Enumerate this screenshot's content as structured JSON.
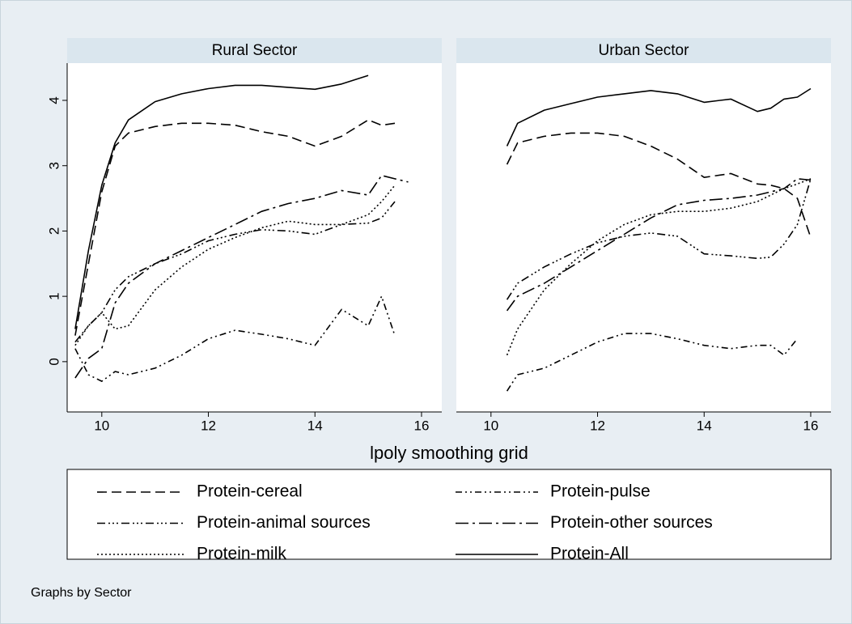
{
  "chart_data": {
    "type": "line",
    "xlabel": "lpoly smoothing grid",
    "note": "Graphs by Sector",
    "xlim": [
      9.35,
      16.38
    ],
    "xticks": [
      10,
      12,
      14,
      16
    ],
    "ylim": [
      -0.77,
      4.57
    ],
    "yticks": [
      0,
      1,
      2,
      3,
      4
    ],
    "series": [
      {
        "name": "Protein-cereal",
        "color": "#000000",
        "dash": "12,6"
      },
      {
        "name": "Protein-pulse",
        "color": "#000000",
        "dash": "8,4,2,4,2,4"
      },
      {
        "name": "Protein-animal sources",
        "color": "#000000",
        "dash": "10,4,2,3,2,3,2,4"
      },
      {
        "name": "Protein-other sources",
        "color": "#000000",
        "dash": "16,5,3,5"
      },
      {
        "name": "Protein-milk",
        "color": "#000000",
        "dash": "2,3"
      },
      {
        "name": "Protein-All",
        "color": "#000000",
        "dash": "none"
      }
    ],
    "panels": [
      {
        "title": "Rural Sector",
        "x": [
          9.5,
          9.75,
          10,
          10.25,
          10.5,
          11,
          11.5,
          12,
          12.5,
          13,
          13.5,
          14,
          14.5,
          15,
          15.25,
          15.5,
          15.75,
          16
        ],
        "values": [
          [
            0.4,
            1.5,
            2.6,
            3.3,
            3.5,
            3.6,
            3.65,
            3.65,
            3.62,
            3.52,
            3.45,
            3.3,
            3.45,
            3.7,
            3.62,
            3.65,
            null,
            null
          ],
          [
            0.2,
            -0.2,
            -0.3,
            -0.15,
            -0.2,
            -0.1,
            0.1,
            0.35,
            0.48,
            0.42,
            0.35,
            0.25,
            0.8,
            0.55,
            1.0,
            0.4,
            null,
            null
          ],
          [
            0.3,
            0.55,
            0.75,
            1.1,
            1.3,
            1.5,
            1.65,
            1.85,
            1.95,
            2.02,
            2.0,
            1.95,
            2.1,
            2.12,
            2.2,
            2.45,
            null,
            null
          ],
          [
            -0.25,
            0.05,
            0.2,
            0.9,
            1.2,
            1.5,
            1.7,
            1.9,
            2.1,
            2.3,
            2.42,
            2.5,
            2.62,
            2.55,
            2.85,
            2.8,
            2.75,
            null
          ],
          [
            0.25,
            0.55,
            0.75,
            0.5,
            0.55,
            1.1,
            1.45,
            1.72,
            1.9,
            2.05,
            2.15,
            2.1,
            2.1,
            2.25,
            2.45,
            2.7,
            null,
            null
          ],
          [
            0.5,
            1.7,
            2.7,
            3.35,
            3.7,
            3.98,
            4.1,
            4.18,
            4.23,
            4.23,
            4.2,
            4.17,
            4.25,
            4.38,
            null,
            null,
            null,
            null
          ]
        ]
      },
      {
        "title": "Urban Sector",
        "x": [
          10.3,
          10.5,
          11,
          11.5,
          12,
          12.5,
          13,
          13.5,
          14,
          14.5,
          15,
          15.25,
          15.5,
          15.75,
          16
        ],
        "values": [
          [
            3.02,
            3.35,
            3.45,
            3.5,
            3.5,
            3.45,
            3.3,
            3.1,
            2.82,
            2.88,
            2.72,
            2.7,
            2.65,
            2.5,
            1.9
          ],
          [
            -0.45,
            -0.2,
            -0.1,
            0.1,
            0.3,
            0.43,
            0.43,
            0.35,
            0.25,
            0.2,
            0.25,
            0.25,
            0.1,
            0.35,
            null
          ],
          [
            0.95,
            1.2,
            1.45,
            1.65,
            1.82,
            1.92,
            1.97,
            1.92,
            1.65,
            1.62,
            1.58,
            1.6,
            1.8,
            2.1,
            2.8
          ],
          [
            0.78,
            1.0,
            1.2,
            1.45,
            1.7,
            1.95,
            2.2,
            2.4,
            2.47,
            2.5,
            2.55,
            2.6,
            2.65,
            2.8,
            2.78
          ],
          [
            0.1,
            0.5,
            1.1,
            1.5,
            1.85,
            2.1,
            2.25,
            2.3,
            2.3,
            2.35,
            2.45,
            2.55,
            2.65,
            2.72,
            2.8
          ],
          [
            3.3,
            3.65,
            3.85,
            3.95,
            4.05,
            4.1,
            4.15,
            4.1,
            3.97,
            4.02,
            3.83,
            3.88,
            4.02,
            4.05,
            4.18
          ]
        ]
      }
    ]
  }
}
